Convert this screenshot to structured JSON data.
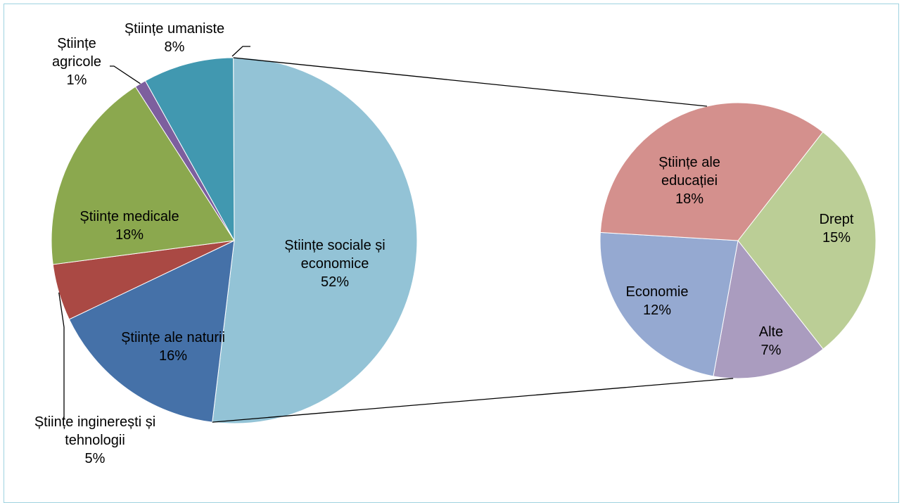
{
  "chart_data": [
    {
      "type": "pie",
      "name": "main-pie",
      "slices": [
        {
          "label": [
            "Științe sociale și",
            "economice"
          ],
          "pct_label": "52%",
          "value": 52,
          "color": "#93C3D6",
          "exploded_into_secondary": true
        },
        {
          "label": [
            "Științe ale naturii"
          ],
          "pct_label": "16%",
          "value": 16,
          "color": "#4571A8"
        },
        {
          "label": [
            "Științe inginerești și",
            "tehnologii"
          ],
          "pct_label": "5%",
          "value": 5,
          "color": "#AA4944"
        },
        {
          "label": [
            "Științe medicale"
          ],
          "pct_label": "18%",
          "value": 18,
          "color": "#8BA84E"
        },
        {
          "label": [
            "Științe",
            "agricole"
          ],
          "pct_label": "1%",
          "value": 1,
          "color": "#7D5F9E"
        },
        {
          "label": [
            "Științe umaniste"
          ],
          "pct_label": "8%",
          "value": 8,
          "color": "#4198B0"
        }
      ]
    },
    {
      "type": "pie",
      "name": "secondary-pie",
      "slices": [
        {
          "label": [
            "Drept"
          ],
          "pct_label": "15%",
          "value": 15,
          "color": "#BBCE96"
        },
        {
          "label": [
            "Alte"
          ],
          "pct_label": "7%",
          "value": 7,
          "color": "#AA9CBF"
        },
        {
          "label": [
            "Economie"
          ],
          "pct_label": "12%",
          "value": 12,
          "color": "#95A9D1"
        },
        {
          "label": [
            "Științe ale",
            "educației"
          ],
          "pct_label": "18%",
          "value": 18,
          "color": "#D4908D"
        }
      ]
    }
  ]
}
